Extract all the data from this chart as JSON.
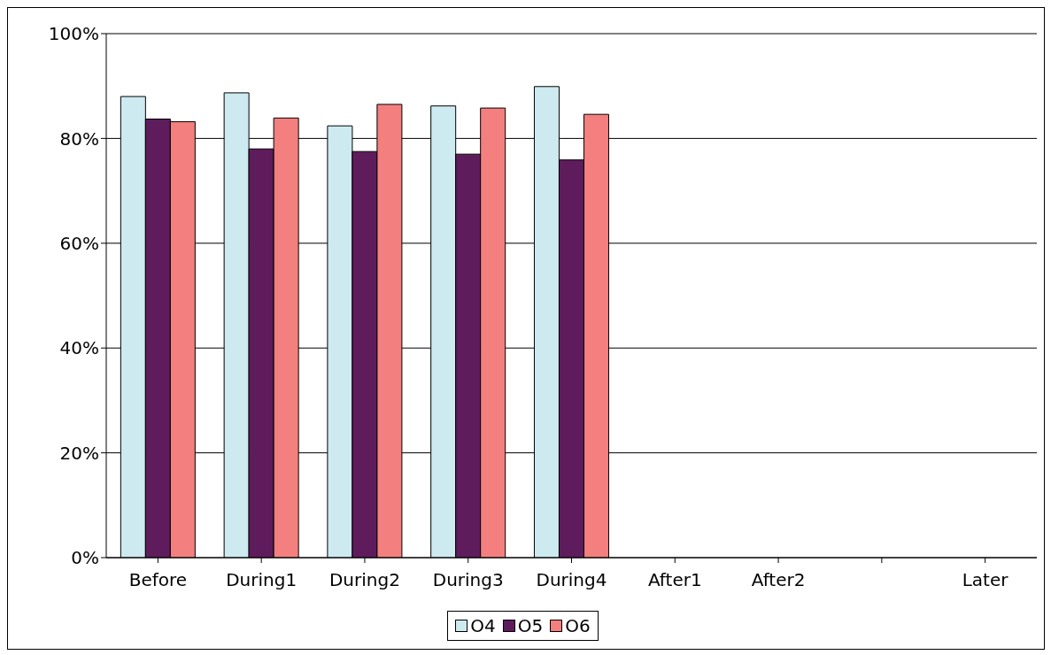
{
  "chart_data": {
    "type": "bar",
    "categories": [
      "Before",
      "During1",
      "During2",
      "During3",
      "During4",
      "After1",
      "After2",
      null,
      "Later"
    ],
    "series": [
      {
        "name": "O4",
        "color": "#cdeaf0",
        "values": [
          88,
          88.7,
          82.4,
          86.2,
          89.9,
          null,
          null,
          null,
          null
        ]
      },
      {
        "name": "O5",
        "color": "#5f1c5c",
        "values": [
          83.7,
          78,
          77.5,
          77,
          75.9,
          null,
          null,
          null,
          null
        ]
      },
      {
        "name": "O6",
        "color": "#f47f7f",
        "values": [
          83.2,
          83.9,
          86.5,
          85.8,
          84.6,
          null,
          null,
          null,
          null
        ]
      }
    ],
    "ylim": [
      0,
      100
    ],
    "yticks": [
      {
        "value": 0,
        "label": "0%"
      },
      {
        "value": 20,
        "label": "20%"
      },
      {
        "value": 40,
        "label": "40%"
      },
      {
        "value": 60,
        "label": "60%"
      },
      {
        "value": 80,
        "label": "80%"
      },
      {
        "value": 100,
        "label": "100%"
      }
    ],
    "grid": "y",
    "legend": "bottom"
  }
}
